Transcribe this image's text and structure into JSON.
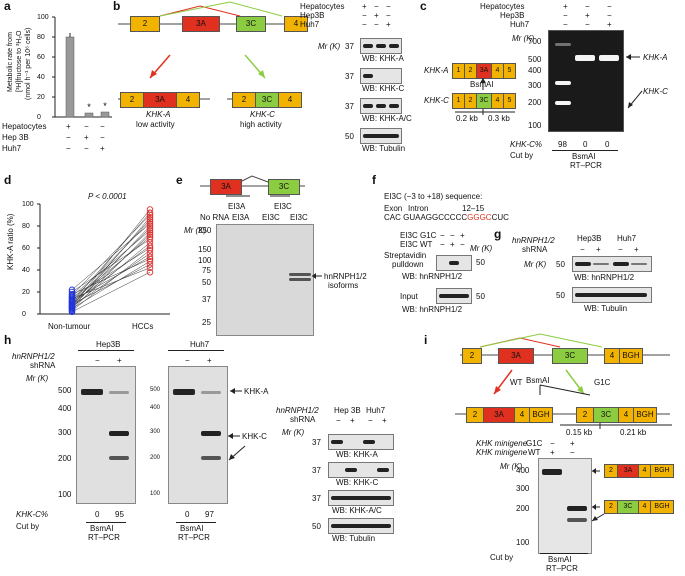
{
  "panel_a": {
    "label": "a",
    "ylabel_line1": "Metabolic rate from",
    "ylabel_line2": "[³H]fructose to ³H₂O",
    "ylabel_line3": "(nmol h⁻¹ per 10⁶ cells)",
    "yticks": [
      "0",
      "20",
      "40",
      "60",
      "80",
      "100"
    ],
    "rows": [
      "Hepatocytes",
      "Hep 3B",
      "Huh7"
    ],
    "signs": [
      [
        "+",
        "−",
        "−"
      ],
      [
        "−",
        "+",
        "−"
      ],
      [
        "−",
        "−",
        "+"
      ]
    ],
    "marks": [
      "*",
      "*"
    ]
  },
  "panel_b": {
    "label": "b",
    "exons": [
      "2",
      "3A",
      "3C",
      "4"
    ],
    "left_name": "KHK-A",
    "left_activity": "low activity",
    "right_name": "KHK-C",
    "right_activity": "high activity",
    "header_rows": [
      "Hepatocytes",
      "Hep3B",
      "Huh7"
    ],
    "header_signs": [
      [
        "+",
        "−",
        "−"
      ],
      [
        "−",
        "+",
        "−"
      ],
      [
        "−",
        "−",
        "+"
      ]
    ],
    "mr_label": "Mr (K)",
    "blots": [
      {
        "mw": "37",
        "label": "WB: KHK-A"
      },
      {
        "mw": "37",
        "label": "WB: KHK-C"
      },
      {
        "mw": "37",
        "label": "WB: KHK-A/C"
      },
      {
        "mw": "50",
        "label": "WB: Tubulin"
      }
    ]
  },
  "panel_c": {
    "label": "c",
    "header_rows": [
      "Hepatocytes",
      "Hep3B",
      "Huh7"
    ],
    "header_signs": [
      [
        "+",
        "−",
        "−"
      ],
      [
        "−",
        "+",
        "−"
      ],
      [
        "−",
        "−",
        "+"
      ]
    ],
    "mr_label": "Mr (K)",
    "mw": [
      "700",
      "500",
      "400",
      "300",
      "200",
      "100"
    ],
    "right_labels": [
      "KHK-A",
      "KHK-C"
    ],
    "khka_exons": [
      "1",
      "2",
      "3A",
      "4",
      "5"
    ],
    "khkc_exons": [
      "1",
      "2",
      "3C",
      "4",
      "5"
    ],
    "khka_name": "KHK-A",
    "khkc_name": "KHK-C",
    "bsmai": "BsmAI",
    "len1": "0.2 kb",
    "len2": "0.3 kb",
    "khkc_pct_label": "KHK-C%",
    "khkc_pct": [
      "98",
      "0",
      "0"
    ],
    "cut_by": "Cut by",
    "cut_enzyme": "BsmAI",
    "method": "RT–PCR"
  },
  "panel_d": {
    "label": "d",
    "ylabel": "KHK-A ratio (%)",
    "yticks": [
      "0",
      "20",
      "40",
      "60",
      "80",
      "100"
    ],
    "pvalue": "P < 0.0001",
    "groups": [
      "Non-tumour",
      "HCCs"
    ]
  },
  "panel_e": {
    "label": "e",
    "exons": [
      "3A",
      "3C"
    ],
    "probe_labels": [
      "EI3A",
      "EI3C"
    ],
    "lanes": [
      "No RNA",
      "EI3A",
      "EI3C",
      "EI3C"
    ],
    "mr_label": "Mr (K)",
    "mw": [
      "250",
      "150",
      "100",
      "75",
      "50",
      "37",
      "25"
    ],
    "band_label_1": "hnRNPH1/2",
    "band_label_2": "isoforms"
  },
  "panel_f": {
    "label": "f",
    "title": "EI3C (−3 to +18) sequence:",
    "exon": "Exon",
    "intron": "Intron",
    "range": "12–15",
    "seq_a": "CAC GUAAGGCCCCC",
    "seq_red": "GGGC",
    "seq_b": "CUC",
    "rows": [
      "EI3C G1C",
      "EI3C WT"
    ],
    "signs": [
      [
        "−",
        "−",
        "+"
      ],
      [
        "−",
        "+",
        "−"
      ]
    ],
    "pulldown": [
      "Streptavidin",
      "pulldown"
    ],
    "mr_label": "Mr (K)",
    "mw": "50",
    "wb1": "WB: hnRNPH1/2",
    "input": "Input",
    "wb2": "WB: hnRNPH1/2"
  },
  "panel_g": {
    "label": "g",
    "gene": "hnRNPH1/2",
    "shrna": "shRNA",
    "cells": [
      "Hep3B",
      "Huh7"
    ],
    "signs": [
      "−",
      "+",
      "−",
      "+"
    ],
    "mr_label": "Mr (K)",
    "mw": [
      "50",
      "50"
    ],
    "wb1": "WB: hnRNPH1/2",
    "wb2": "WB: Tubulin"
  },
  "panel_h": {
    "label": "h",
    "cells": [
      "Hep3B",
      "Huh7"
    ],
    "gene": "hnRNPH1/2",
    "shrna": "shRNA",
    "signs": [
      "−",
      "+"
    ],
    "mr_label": "Mr (K)",
    "mw": [
      "500",
      "400",
      "300",
      "200",
      "100"
    ],
    "arrows": [
      "KHK-A",
      "KHK-C"
    ],
    "khkc_pct_label": "KHK-C%",
    "khkc_pct": [
      "0",
      "95",
      "0",
      "97"
    ],
    "cut_by": "Cut by",
    "cut_enzyme": "BsmAI",
    "method": "RT–PCR",
    "wb_header_cells": [
      "Hep 3B",
      "Huh7"
    ],
    "wb_signs": [
      "−",
      "+",
      "−",
      "+"
    ],
    "wb": [
      {
        "mw": "37",
        "label": "WB: KHK-A"
      },
      {
        "mw": "37",
        "label": "WB: KHK-C"
      },
      {
        "mw": "37",
        "label": "WB: KHK-A/C"
      },
      {
        "mw": "50",
        "label": "WB: Tubulin"
      }
    ]
  },
  "panel_i": {
    "label": "i",
    "exons": [
      "2",
      "3A",
      "3C",
      "4",
      "BGH"
    ],
    "bsmai": "BsmAI",
    "wt": "WT",
    "g1c": "G1C",
    "left_exons": [
      "2",
      "3A",
      "4",
      "BGH"
    ],
    "right_exons": [
      "2",
      "3C",
      "4",
      "BGH"
    ],
    "len1": "0.15 kb",
    "len2": "0.21 kb",
    "rows": [
      "KHK minigene",
      "KHK minigene"
    ],
    "row_suffix": [
      "G1C",
      "WT"
    ],
    "signs": [
      [
        "−",
        "+"
      ],
      [
        "+",
        "−"
      ]
    ],
    "mr_label": "Mr (K)",
    "mw": [
      "400",
      "300",
      "200",
      "100"
    ],
    "cut_by": "Cut by",
    "cut_enzyme": "BsmAI",
    "method": "RT–PCR"
  },
  "chart_data": [
    {
      "type": "bar",
      "categories": [
        "Hepatocytes",
        "Hep 3B",
        "Huh7"
      ],
      "values": [
        80,
        4,
        5
      ],
      "ylabel": "Metabolic rate from [³H]fructose to ³H₂O (nmol h⁻¹ per 10⁶ cells)",
      "ylim": [
        0,
        100
      ]
    },
    {
      "type": "scatter",
      "categories": [
        "Non-tumour",
        "HCCs"
      ],
      "ylabel": "KHK-A ratio (%)",
      "ylim": [
        0,
        100
      ],
      "series": [
        {
          "name": "Non-tumour",
          "values": [
            2,
            3,
            4,
            5,
            5,
            6,
            6,
            7,
            7,
            8,
            8,
            9,
            10,
            10,
            11,
            12,
            12,
            13,
            14,
            15,
            16,
            17,
            18,
            20,
            22
          ]
        },
        {
          "name": "HCCs",
          "values": [
            38,
            42,
            45,
            48,
            50,
            52,
            55,
            58,
            60,
            62,
            65,
            68,
            70,
            72,
            74,
            76,
            78,
            80,
            82,
            84,
            86,
            88,
            90,
            92,
            95
          ]
        }
      ]
    }
  ]
}
